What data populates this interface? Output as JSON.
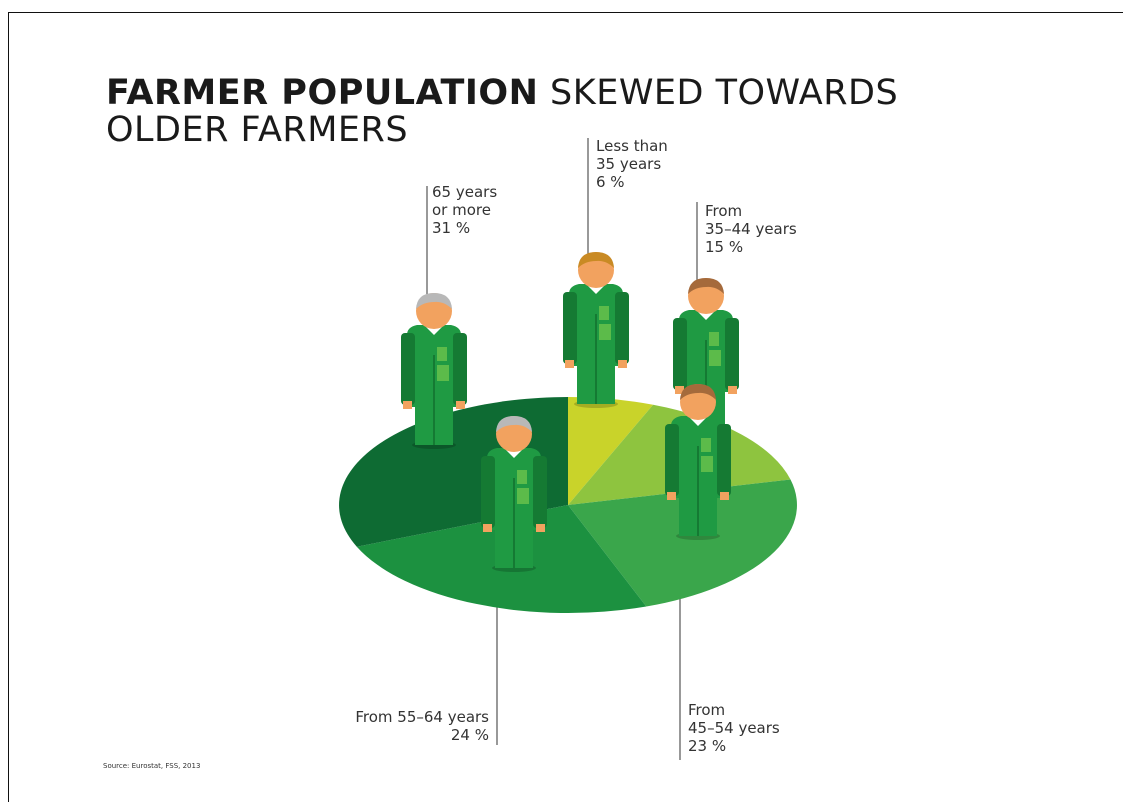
{
  "title": {
    "bold": "FARMER POPULATION",
    "rest": "SKEWED TOWARDS",
    "line2": "OLDER FARMERS"
  },
  "source": "Source: Eurostat, FSS, 2013",
  "chart_data": {
    "type": "pie",
    "title": "FARMER POPULATION SKEWED TOWARDS OLDER FARMERS",
    "slices": [
      {
        "label": "Less than 35 years",
        "value": 6,
        "unit": "%",
        "color": "#c9d32a"
      },
      {
        "label": "From 35–44 years",
        "value": 15,
        "unit": "%",
        "color": "#8ec43f"
      },
      {
        "label": "From 45–54 years",
        "value": 23,
        "unit": "%",
        "color": "#3aa64b"
      },
      {
        "label": "From 55–64 years",
        "value": 24,
        "unit": "%",
        "color": "#1c9140"
      },
      {
        "label": "65 years or more",
        "value": 31,
        "unit": "%",
        "color": "#0e6b33"
      }
    ],
    "start_angle": "12 o'clock",
    "direction": "clockwise"
  },
  "labels": {
    "lt35": [
      "Less than",
      "35 years",
      "6 %"
    ],
    "f3544": [
      "From",
      "35–44 years",
      "15 %"
    ],
    "f4554": [
      "From",
      "45–54 years",
      "23 %"
    ],
    "f5564": [
      "From 55–64 years",
      "24 %"
    ],
    "g65": [
      "65 years",
      "or more",
      "31 %"
    ]
  },
  "colors": {
    "coat": "#1f9a43",
    "coat_dark": "#157a33",
    "coat_panel": "#5cbb4a",
    "skin": "#f2a25f",
    "hair_grey": "#b8b8b8",
    "hair_brown": "#a56a3b",
    "hair_ochre": "#c98a24"
  }
}
